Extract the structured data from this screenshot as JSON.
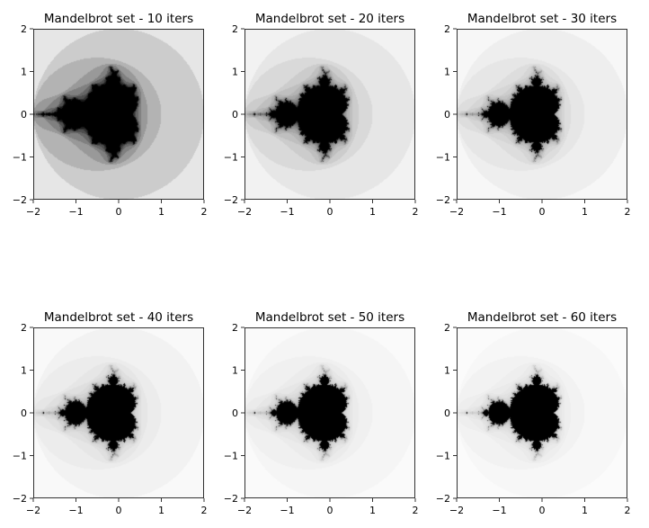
{
  "chart_data": [
    {
      "type": "heatmap",
      "title": "Mandelbrot set - 10 iters",
      "iterations": 10,
      "xlim": [
        -2,
        2
      ],
      "ylim": [
        -2,
        2
      ],
      "xticks": [
        "−2",
        "−1",
        "0",
        "1",
        "2"
      ],
      "yticks": [
        "2",
        "1",
        "0",
        "−1",
        "−2"
      ],
      "colormap": "gray_r",
      "grid": false
    },
    {
      "type": "heatmap",
      "title": "Mandelbrot set - 20 iters",
      "iterations": 20,
      "xlim": [
        -2,
        2
      ],
      "ylim": [
        -2,
        2
      ],
      "xticks": [
        "−2",
        "−1",
        "0",
        "1",
        "2"
      ],
      "yticks": [
        "2",
        "1",
        "0",
        "−1",
        "−2"
      ],
      "colormap": "gray_r",
      "grid": false
    },
    {
      "type": "heatmap",
      "title": "Mandelbrot set - 30 iters",
      "iterations": 30,
      "xlim": [
        -2,
        2
      ],
      "ylim": [
        -2,
        2
      ],
      "xticks": [
        "−2",
        "−1",
        "0",
        "1",
        "2"
      ],
      "yticks": [
        "2",
        "1",
        "0",
        "−1",
        "−2"
      ],
      "colormap": "gray_r",
      "grid": false
    },
    {
      "type": "heatmap",
      "title": "Mandelbrot set - 40 iters",
      "iterations": 40,
      "xlim": [
        -2,
        2
      ],
      "ylim": [
        -2,
        2
      ],
      "xticks": [
        "−2",
        "−1",
        "0",
        "1",
        "2"
      ],
      "yticks": [
        "2",
        "1",
        "0",
        "−1",
        "−2"
      ],
      "colormap": "gray_r",
      "grid": false
    },
    {
      "type": "heatmap",
      "title": "Mandelbrot set - 50 iters",
      "iterations": 50,
      "xlim": [
        -2,
        2
      ],
      "ylim": [
        -2,
        2
      ],
      "xticks": [
        "−2",
        "−1",
        "0",
        "1",
        "2"
      ],
      "yticks": [
        "2",
        "1",
        "0",
        "−1",
        "−2"
      ],
      "colormap": "gray_r",
      "grid": false
    },
    {
      "type": "heatmap",
      "title": "Mandelbrot set - 60 iters",
      "iterations": 60,
      "xlim": [
        -2,
        2
      ],
      "ylim": [
        -2,
        2
      ],
      "xticks": [
        "−2",
        "−1",
        "0",
        "1",
        "2"
      ],
      "yticks": [
        "2",
        "1",
        "0",
        "−1",
        "−2"
      ],
      "colormap": "gray_r",
      "grid": false
    }
  ]
}
